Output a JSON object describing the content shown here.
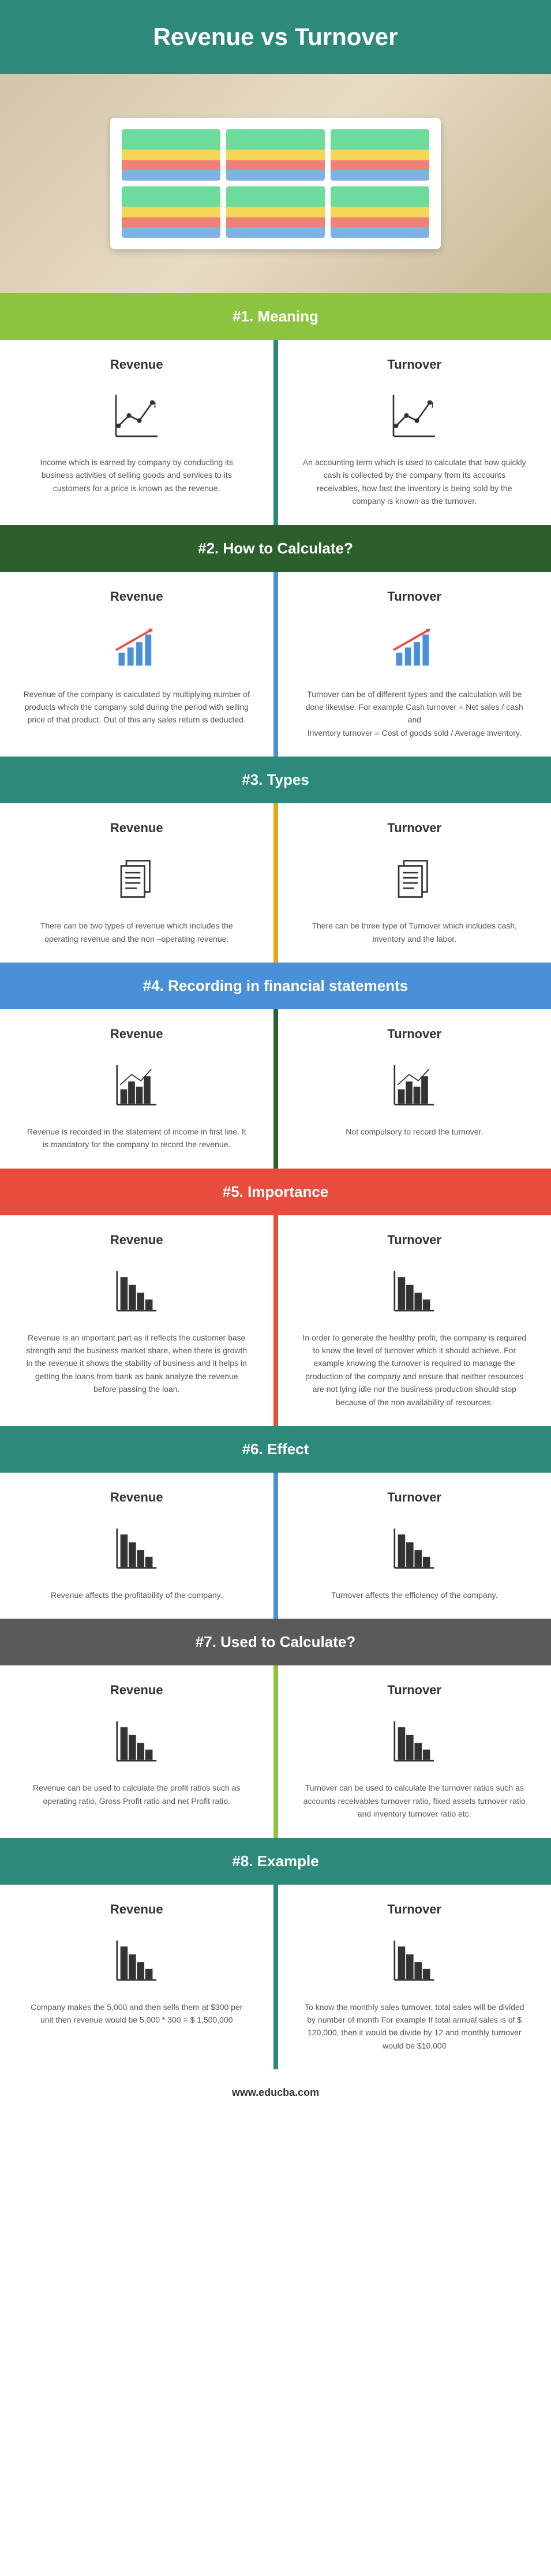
{
  "header": {
    "title": "Revenue vs Turnover",
    "bg_color": "#2d8a7a"
  },
  "footer": {
    "text": "www.educba.com"
  },
  "column_labels": {
    "left": "Revenue",
    "right": "Turnover"
  },
  "sections": [
    {
      "header": "#1. Meaning",
      "header_bg": "#8bc53f",
      "divider_color": "#2d8a7a",
      "icon": "line-chart",
      "left_text": "Income which is earned by company by conducting its business activities of selling goods and services to its customers for a price is known as the revenue.",
      "right_text": "An accounting term which is used to calculate that how quickly cash is collected by the company from its accounts receivables, how fast the inventory is being sold by the company is known as the turnover."
    },
    {
      "header": "#2. How to Calculate?",
      "header_bg": "#2d5f2d",
      "divider_color": "#4a90d9",
      "icon": "growth-chart",
      "left_text": "Revenue of the company is calculated by multiplying number of products which the company sold during the period with selling price of that product. Out of this any sales return is deducted.",
      "right_text": "Turnover can be of different types and the calculation will be done likewise. For example Cash turnover = Net sales / cash and\nInventory turnover = Cost of goods sold / Average inventory."
    },
    {
      "header": "#3. Types",
      "header_bg": "#2d8a7a",
      "divider_color": "#e6a817",
      "icon": "documents",
      "left_text": "There can be two types of revenue which includes the operating revenue and the non –operating revenue.",
      "right_text": "There can be three type of Turnover which includes cash, inventory and the labor."
    },
    {
      "header": "#4. Recording in financial statements",
      "header_bg": "#4a90d9",
      "divider_color": "#2d5f2d",
      "icon": "bar-line-chart",
      "left_text": "Revenue is recorded in the statement of income in first line. It is mandatory for the company to record the revenue.",
      "right_text": "Not compulsory to record the turnover."
    },
    {
      "header": "#5. Importance",
      "header_bg": "#e74c3c",
      "divider_color": "#e74c3c",
      "icon": "bar-chart-desc",
      "left_text": "Revenue is an important part as it reflects the customer base strength and the business market share, when there is growth in the revenue it shows the stability of business and it helps in getting the loans from bank as bank analyze the revenue before passing the loan.",
      "right_text": "In order to generate the healthy profit, the company is required to know the level of turnover which it should achieve. For example knowing the turnover is required to manage the production of the company and ensure that neither resources are not lying idle nor the business production should stop because of the non availability of resources."
    },
    {
      "header": "#6. Effect",
      "header_bg": "#2d8a7a",
      "divider_color": "#4a90d9",
      "icon": "bar-chart-desc2",
      "left_text": "Revenue affects the profitability of the company.",
      "right_text": "Turnover affects the efficiency of the company."
    },
    {
      "header": "#7. Used to Calculate?",
      "header_bg": "#5a5a5a",
      "divider_color": "#8bc53f",
      "icon": "bar-chart-desc3",
      "left_text": "Revenue can be used to calculate the profit ratios such as operating ratio, Gross Profit ratio and net Profit ratio.",
      "right_text": "Turnover can be used to calculate the turnover ratios such as accounts receivables turnover ratio, fixed assets turnover ratio and inventory turnover ratio etc."
    },
    {
      "header": "#8. Example",
      "header_bg": "#2d8a7a",
      "divider_color": "#2d8a7a",
      "icon": "bar-chart-desc4",
      "left_text": "Company makes the 5,000 and then sells them at $300 per unit then revenue would be 5,000 * 300 = $ 1,500,000",
      "right_text": "To know the monthly sales turnover, total sales will be divided by number of month For example If total annual sales is of $ 120,000, then it would be divide by 12 and monthly turnover would be $10,000"
    }
  ]
}
